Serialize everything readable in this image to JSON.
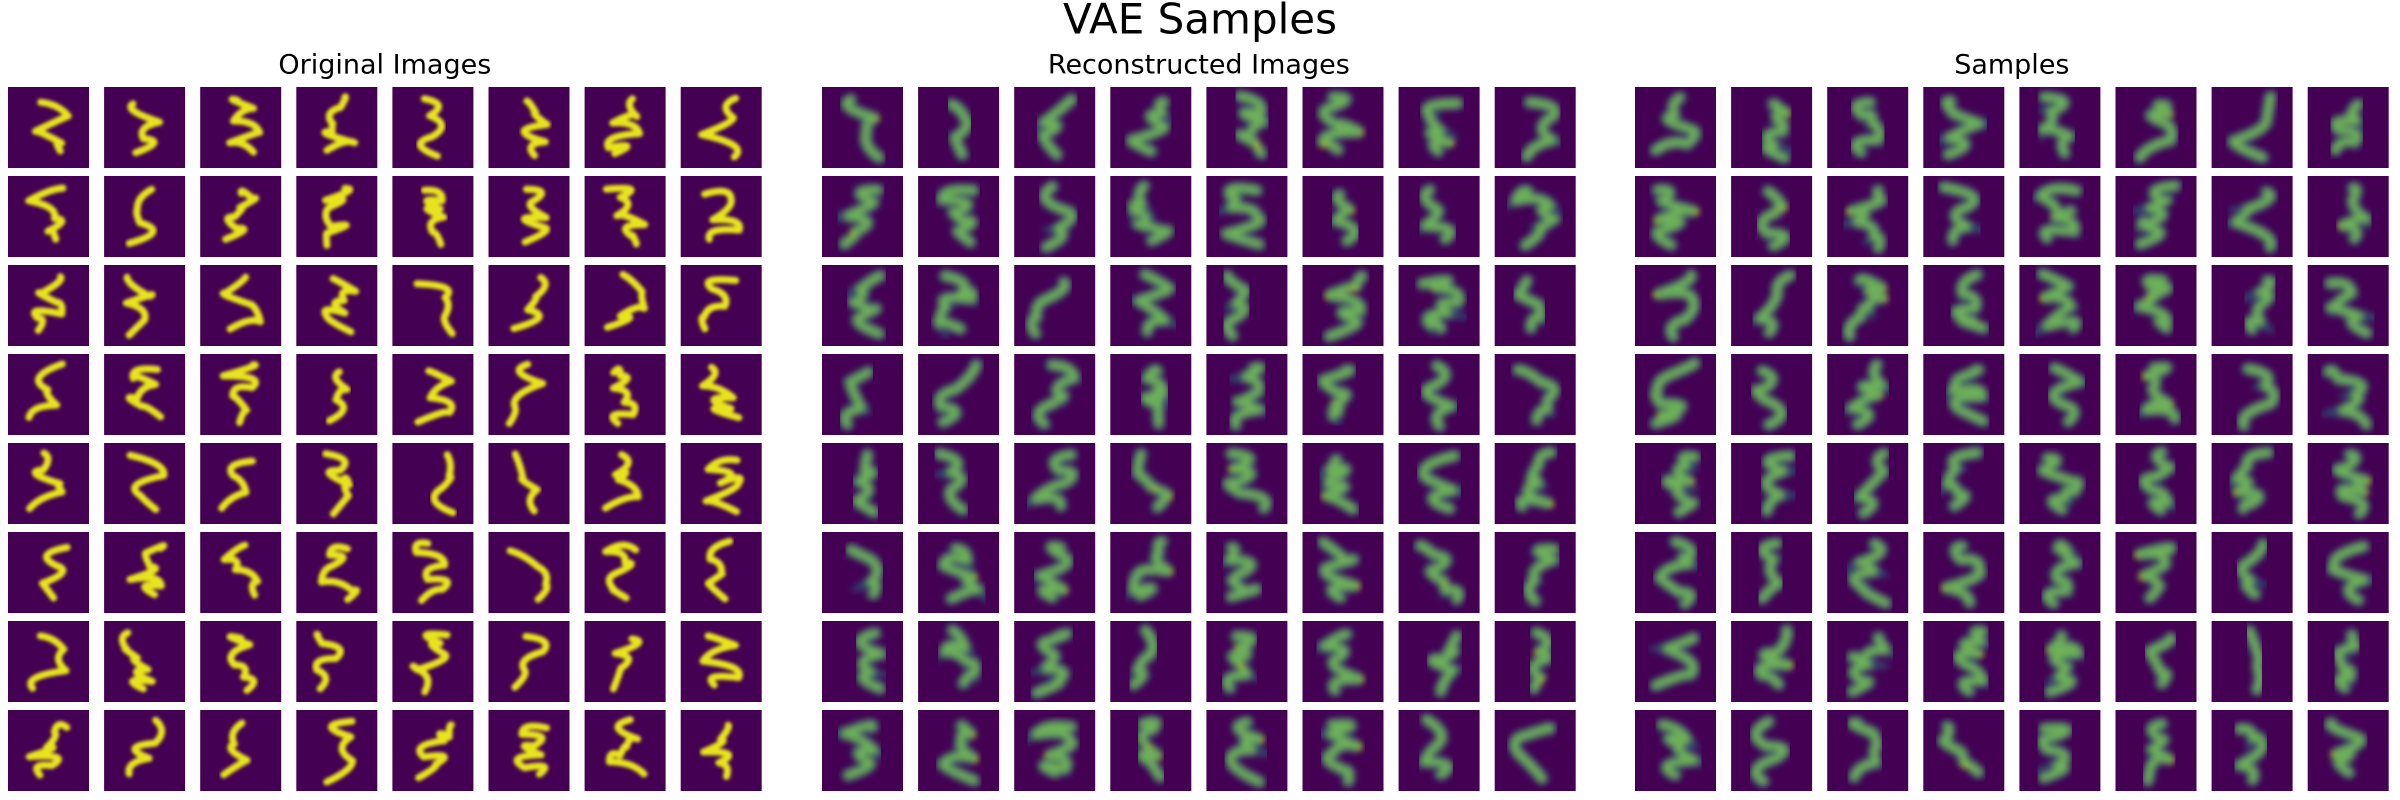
{
  "title": "VAE Samples",
  "panels": [
    {
      "title": "Original Images"
    },
    {
      "title": "Reconstructed Images"
    },
    {
      "title": "Samples"
    }
  ]
}
